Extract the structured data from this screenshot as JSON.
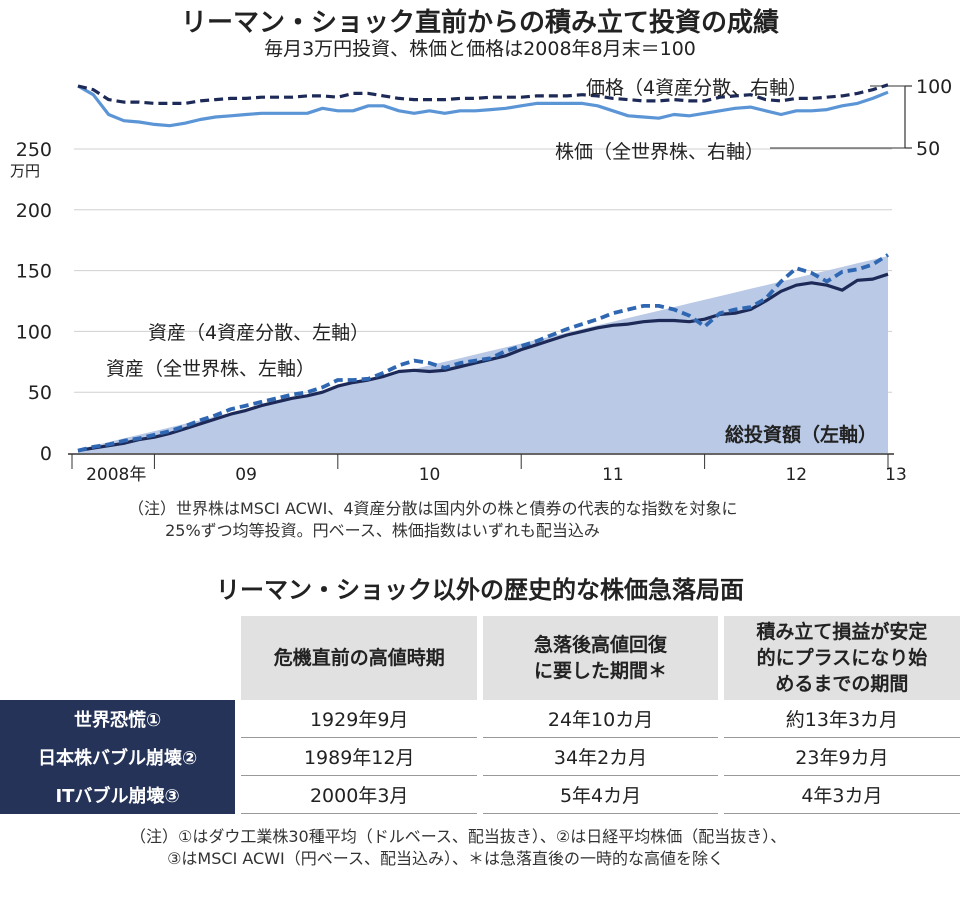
{
  "top": {
    "title": "リーマン・ショック直前からの積み立て投資の成績",
    "subtitle": "毎月3万円投資、株価と価格は2008年8月末＝100"
  },
  "chart_data": {
    "type": "line",
    "title": "リーマン・ショック直前からの積み立て投資の成績",
    "subtitle": "毎月3万円投資、株価と価格は2008年8月末＝100",
    "x_unit": "month index from 2008年8月 (0) to 2013年1月 (53)",
    "x": [
      0,
      1,
      2,
      3,
      4,
      5,
      6,
      7,
      8,
      9,
      10,
      11,
      12,
      13,
      14,
      15,
      16,
      17,
      18,
      19,
      20,
      21,
      22,
      23,
      24,
      25,
      26,
      27,
      28,
      29,
      30,
      31,
      32,
      33,
      34,
      35,
      36,
      37,
      38,
      39,
      40,
      41,
      42,
      43,
      44,
      45,
      46,
      47,
      48,
      49,
      50,
      51,
      52,
      53
    ],
    "x_tick_labels": [
      "2008年",
      "09",
      "10",
      "11",
      "12",
      "13"
    ],
    "left_axis": {
      "label": "万円",
      "ticks": [
        0,
        50,
        100,
        150,
        200,
        250
      ],
      "ylim": [
        0,
        250
      ]
    },
    "right_axis": {
      "ticks": [
        50,
        100
      ],
      "ylim": [
        50,
        100
      ]
    },
    "grid": true,
    "series": [
      {
        "name": "総投資額（左軸）",
        "kind": "area",
        "axis": "left",
        "values": [
          3,
          6,
          9,
          12,
          15,
          18,
          21,
          24,
          27,
          30,
          33,
          36,
          39,
          42,
          45,
          48,
          51,
          54,
          57,
          60,
          63,
          66,
          69,
          72,
          75,
          78,
          81,
          84,
          87,
          90,
          93,
          96,
          99,
          102,
          105,
          108,
          111,
          114,
          117,
          120,
          123,
          126,
          129,
          132,
          135,
          138,
          141,
          144,
          147,
          150,
          153,
          156,
          159,
          162
        ]
      },
      {
        "name": "資産（全世界株、左軸）",
        "kind": "line",
        "axis": "left",
        "values": [
          2,
          4,
          6,
          8,
          11,
          13,
          16,
          20,
          24,
          28,
          32,
          35,
          39,
          42,
          45,
          47,
          50,
          55,
          58,
          60,
          63,
          67,
          68,
          67,
          68,
          71,
          74,
          77,
          80,
          85,
          89,
          93,
          97,
          100,
          103,
          105,
          106,
          108,
          109,
          109,
          108,
          110,
          114,
          115,
          118,
          125,
          133,
          138,
          140,
          138,
          134,
          142,
          143,
          147
        ]
      },
      {
        "name": "資産（4資産分散、左軸）",
        "kind": "line",
        "axis": "left",
        "values": [
          2,
          5,
          7,
          10,
          12,
          15,
          18,
          22,
          27,
          31,
          36,
          39,
          42,
          45,
          48,
          50,
          54,
          60,
          60,
          61,
          66,
          72,
          76,
          74,
          70,
          74,
          76,
          78,
          84,
          88,
          92,
          97,
          102,
          106,
          110,
          115,
          118,
          121,
          121,
          118,
          113,
          104,
          115,
          118,
          120,
          127,
          141,
          152,
          148,
          141,
          149,
          151,
          155,
          163
        ]
      },
      {
        "name": "株価（全世界株、右軸）",
        "kind": "line",
        "axis": "right",
        "values": [
          100,
          93,
          77,
          72,
          71,
          69,
          68,
          70,
          73,
          75,
          76,
          77,
          78,
          78,
          78,
          78,
          82,
          80,
          80,
          84,
          84,
          80,
          78,
          80,
          78,
          80,
          80,
          81,
          82,
          84,
          86,
          86,
          86,
          86,
          84,
          80,
          76,
          75,
          74,
          77,
          76,
          78,
          80,
          82,
          83,
          80,
          77,
          80,
          80,
          81,
          84,
          86,
          90,
          95
        ]
      },
      {
        "name": "価格（4資産分散、右軸）",
        "kind": "line",
        "axis": "right",
        "values": [
          100,
          97,
          89,
          87,
          87,
          86,
          86,
          86,
          88,
          89,
          90,
          90,
          91,
          91,
          91,
          92,
          92,
          91,
          94,
          94,
          92,
          90,
          89,
          89,
          89,
          90,
          90,
          91,
          91,
          91,
          92,
          92,
          92,
          93,
          92,
          90,
          89,
          88,
          88,
          89,
          88,
          88,
          91,
          92,
          93,
          89,
          88,
          90,
          90,
          91,
          92,
          94,
          97,
          101
        ]
      }
    ],
    "annotations": {
      "price": "価格（4資産分散、右軸）",
      "stock": "株価（全世界株、右軸）",
      "asset4": "資産（4資産分散、左軸）",
      "assetWorld": "資産（全世界株、左軸）",
      "total": "総投資額（左軸）"
    }
  },
  "note1": "（注）世界株はMSCI ACWI、4資産分散は国内外の株と債券の代表的な指数を対象に\n　　 25%ずつ均等投資。円ベース、株価指数はいずれも配当込み",
  "table": {
    "title": "リーマン・ショック以外の歴史的な株価急落局面",
    "headers": [
      "危機直前の高値時期",
      "急落後高値回復\nに要した期間＊",
      "積み立て損益が安定\n的にプラスになり始\nめるまでの期間"
    ],
    "rows": [
      {
        "name": "世界恐慌①",
        "cells": [
          "1929年9月",
          "24年10カ月",
          "約13年3カ月"
        ]
      },
      {
        "name": "日本株バブル崩壊②",
        "cells": [
          "1989年12月",
          "34年2カ月",
          "23年9カ月"
        ]
      },
      {
        "name": "ITバブル崩壊③",
        "cells": [
          "2000年3月",
          "5年4カ月",
          "4年3カ月"
        ]
      }
    ]
  },
  "note2": "（注）①はダウ工業株30種平均（ドルベース、配当抜き）、②は日経平均株価（配当抜き）、\n　　 ③はMSCI ACWI（円ベース、配当込み）、＊は急落直後の一時的な高値を除く",
  "colors": {
    "area": "#b9c9e6",
    "world_line": "#1d2a57",
    "diversified_line": "#2f67b3",
    "stock_index": "#5b95d6",
    "price_index": "#1d2a57",
    "navy": "#253358",
    "header_gray": "#e1e1e1"
  }
}
